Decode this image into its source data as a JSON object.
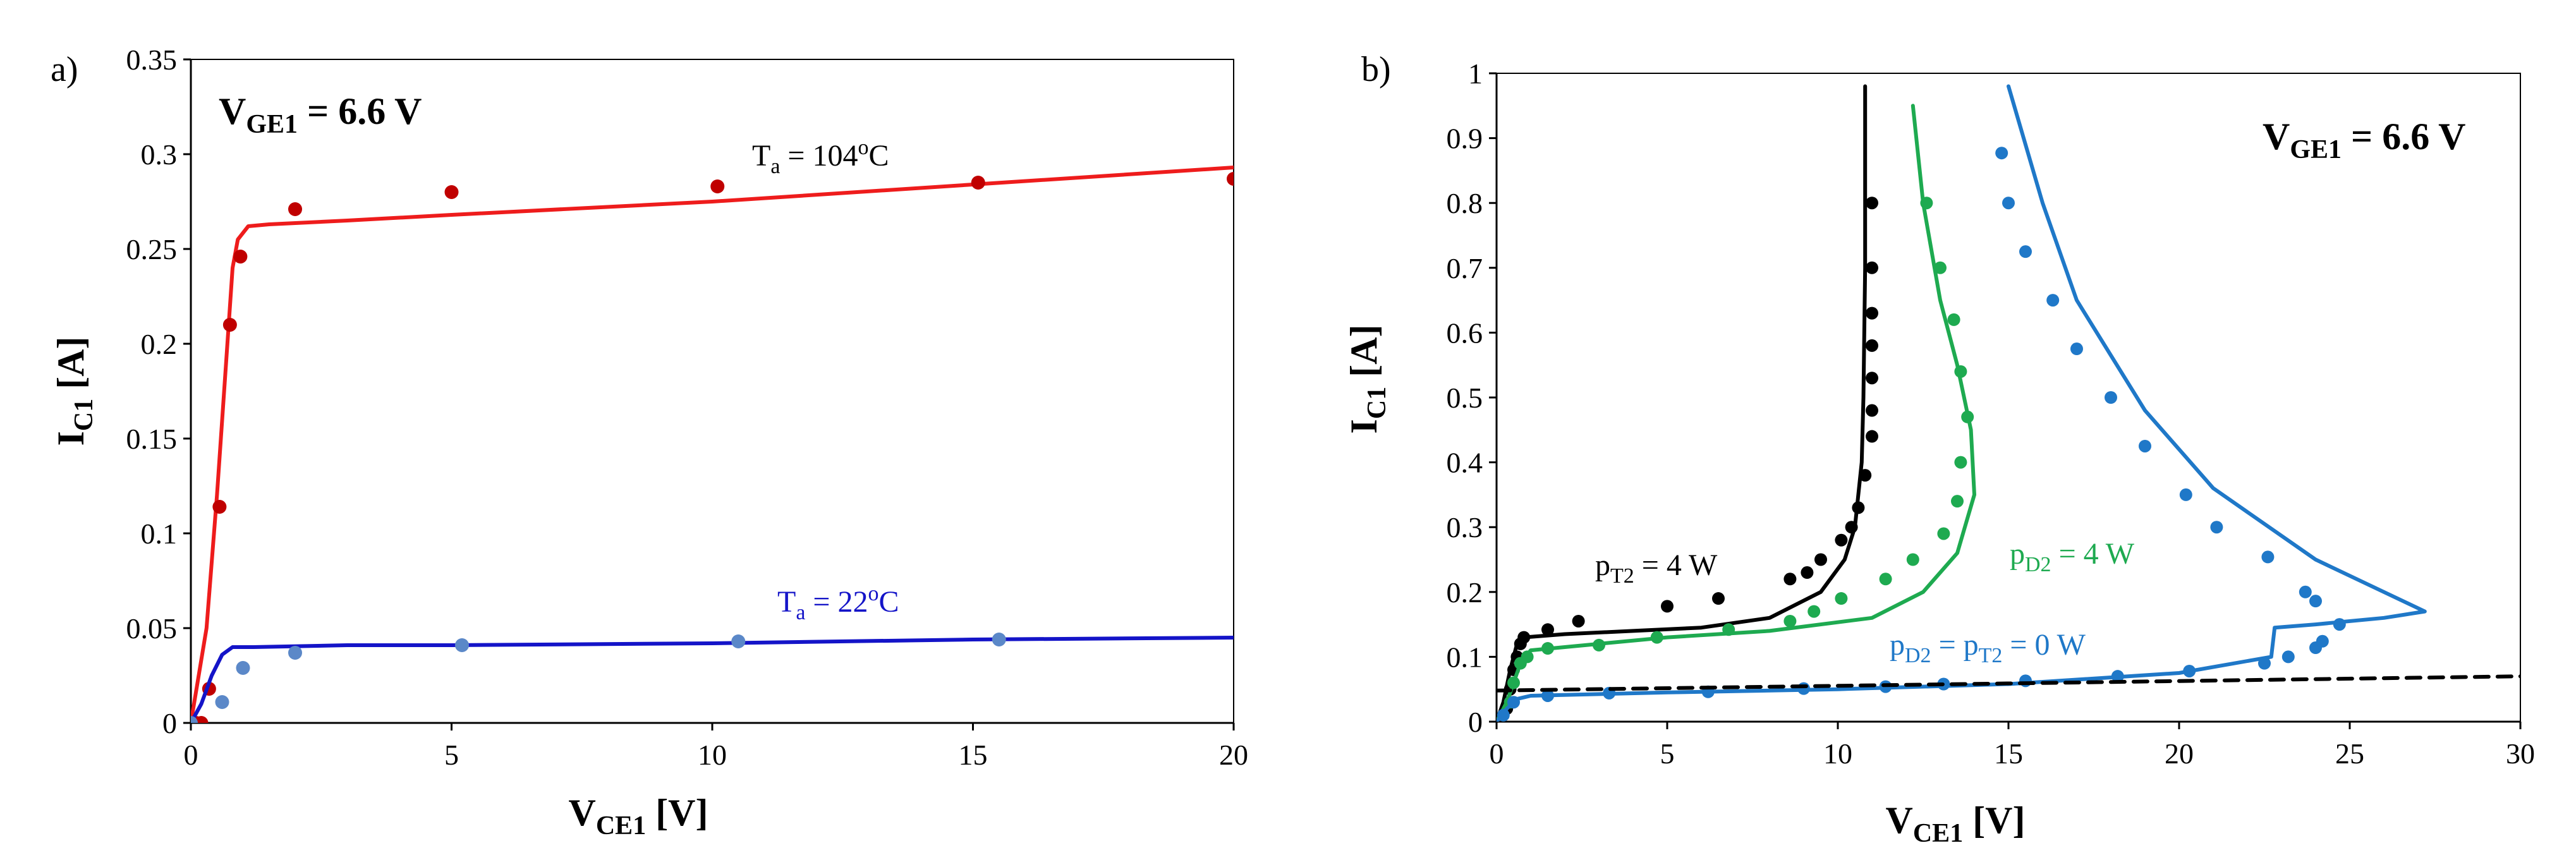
{
  "chart_data": [
    {
      "panel": "a)",
      "type": "line",
      "xlabel": "V",
      "xlabel_sub": "CE1",
      "xlabel_unit": " [V]",
      "ylabel": "I",
      "ylabel_sub": "C1",
      "ylabel_unit": " [A]",
      "xlim": [
        0,
        20
      ],
      "ylim": [
        0,
        0.35
      ],
      "xticks": [
        0,
        5,
        10,
        15,
        20
      ],
      "xtick_labels": [
        "0",
        "5",
        "10",
        "15",
        "20"
      ],
      "yticks": [
        0,
        0.05,
        0.1,
        0.15,
        0.2,
        0.25,
        0.3,
        0.35
      ],
      "ytick_labels": [
        "0",
        "0.05",
        "0.1",
        "0.15",
        "0.2",
        "0.25",
        "0.3",
        "0.35"
      ],
      "vge": {
        "main": "V",
        "sub": "GE1",
        "rest": " = 6.6 V"
      },
      "series": [
        {
          "name": "Ta = 104°C",
          "color": "#ee1c1c",
          "marker_color": "#c00000",
          "curve": [
            [
              0,
              0
            ],
            [
              0.3,
              0.05
            ],
            [
              0.5,
              0.12
            ],
            [
              0.7,
              0.2
            ],
            [
              0.8,
              0.24
            ],
            [
              0.9,
              0.255
            ],
            [
              1.1,
              0.262
            ],
            [
              1.5,
              0.263
            ],
            [
              3,
              0.265
            ],
            [
              5,
              0.268
            ],
            [
              10,
              0.275
            ],
            [
              15,
              0.284
            ],
            [
              20,
              0.293
            ]
          ],
          "points": [
            [
              0,
              0
            ],
            [
              0.1,
              0
            ],
            [
              0.2,
              0
            ],
            [
              0.35,
              0.018
            ],
            [
              0.55,
              0.114
            ],
            [
              0.75,
              0.21
            ],
            [
              0.95,
              0.246
            ],
            [
              2,
              0.271
            ],
            [
              5,
              0.28
            ],
            [
              10.1,
              0.283
            ],
            [
              15.1,
              0.285
            ],
            [
              20,
              0.287
            ]
          ]
        },
        {
          "name": "Ta = 22°C",
          "color": "#1414c8",
          "marker_color": "#5b88c8",
          "curve": [
            [
              0,
              0
            ],
            [
              0.2,
              0.01
            ],
            [
              0.4,
              0.025
            ],
            [
              0.6,
              0.036
            ],
            [
              0.8,
              0.04
            ],
            [
              1.2,
              0.04
            ],
            [
              3,
              0.041
            ],
            [
              5,
              0.041
            ],
            [
              10,
              0.042
            ],
            [
              15,
              0.044
            ],
            [
              20,
              0.045
            ]
          ],
          "points": [
            [
              0,
              0
            ],
            [
              0.6,
              0.011
            ],
            [
              1.0,
              0.029
            ],
            [
              2.0,
              0.037
            ],
            [
              5.2,
              0.041
            ],
            [
              10.5,
              0.043
            ],
            [
              15.5,
              0.044
            ]
          ]
        }
      ],
      "annotations": [
        {
          "main": "T",
          "sub": "a",
          "mid": " = 104",
          "sup": "o",
          "tail": "C",
          "color": "#000000"
        },
        {
          "main": "T",
          "sub": "a",
          "mid": " = 22",
          "sup": "o",
          "tail": "C",
          "color": "#1414c8"
        }
      ]
    },
    {
      "panel": "b)",
      "type": "line",
      "xlabel": "V",
      "xlabel_sub": "CE1",
      "xlabel_unit": " [V]",
      "ylabel": "I",
      "ylabel_sub": "C1",
      "ylabel_unit": " [A]",
      "xlim": [
        0,
        30
      ],
      "ylim": [
        0,
        1
      ],
      "xticks": [
        0,
        5,
        10,
        15,
        20,
        25,
        30
      ],
      "xtick_labels": [
        "0",
        "5",
        "10",
        "15",
        "20",
        "25",
        "30"
      ],
      "yticks": [
        0,
        0.1,
        0.2,
        0.3,
        0.4,
        0.5,
        0.6,
        0.7,
        0.8,
        0.9,
        1
      ],
      "ytick_labels": [
        "0",
        "0.1",
        "0.2",
        "0.3",
        "0.4",
        "0.5",
        "0.6",
        "0.7",
        "0.8",
        "0.9",
        "1"
      ],
      "vge": {
        "main": "V",
        "sub": "GE1",
        "rest": " = 6.6 V"
      },
      "series": [
        {
          "name": "pT2 = 4 W",
          "color": "#000000",
          "marker_color": "#000000",
          "curve": [
            [
              0,
              0
            ],
            [
              0.2,
              0.03
            ],
            [
              0.4,
              0.08
            ],
            [
              0.6,
              0.12
            ],
            [
              0.8,
              0.13
            ],
            [
              2,
              0.135
            ],
            [
              4,
              0.14
            ],
            [
              6,
              0.145
            ],
            [
              8,
              0.16
            ],
            [
              9.5,
              0.2
            ],
            [
              10.2,
              0.25
            ],
            [
              10.5,
              0.3
            ],
            [
              10.7,
              0.4
            ],
            [
              10.75,
              0.5
            ],
            [
              10.8,
              0.7
            ],
            [
              10.8,
              0.98
            ]
          ],
          "points": [
            [
              0.3,
              0.02
            ],
            [
              0.4,
              0.05
            ],
            [
              0.5,
              0.08
            ],
            [
              0.6,
              0.1
            ],
            [
              0.7,
              0.12
            ],
            [
              0.8,
              0.13
            ],
            [
              1.5,
              0.142
            ],
            [
              2.4,
              0.155
            ],
            [
              5,
              0.178
            ],
            [
              6.5,
              0.19
            ],
            [
              8.6,
              0.22
            ],
            [
              9.1,
              0.23
            ],
            [
              9.5,
              0.25
            ],
            [
              10.1,
              0.28
            ],
            [
              10.4,
              0.3
            ],
            [
              10.6,
              0.33
            ],
            [
              10.8,
              0.38
            ],
            [
              11.0,
              0.44
            ],
            [
              11.0,
              0.48
            ],
            [
              11.0,
              0.53
            ],
            [
              11.0,
              0.58
            ],
            [
              11.0,
              0.63
            ],
            [
              11.0,
              0.7
            ],
            [
              11.0,
              0.8
            ]
          ]
        },
        {
          "name": "pD2 = 4 W",
          "color": "#1eaa50",
          "marker_color": "#1eaa50",
          "curve": [
            [
              0,
              0
            ],
            [
              0.3,
              0.03
            ],
            [
              0.5,
              0.06
            ],
            [
              0.7,
              0.09
            ],
            [
              1,
              0.11
            ],
            [
              2,
              0.115
            ],
            [
              5,
              0.13
            ],
            [
              8,
              0.14
            ],
            [
              11,
              0.16
            ],
            [
              12.5,
              0.2
            ],
            [
              13.5,
              0.26
            ],
            [
              14.0,
              0.35
            ],
            [
              13.9,
              0.45
            ],
            [
              13.5,
              0.55
            ],
            [
              13,
              0.65
            ],
            [
              12.5,
              0.8
            ],
            [
              12.2,
              0.95
            ]
          ],
          "points": [
            [
              0.4,
              0.03
            ],
            [
              0.5,
              0.06
            ],
            [
              0.7,
              0.09
            ],
            [
              0.9,
              0.1
            ],
            [
              1.5,
              0.113
            ],
            [
              3,
              0.118
            ],
            [
              4.7,
              0.13
            ],
            [
              6.8,
              0.142
            ],
            [
              8.6,
              0.155
            ],
            [
              9.3,
              0.17
            ],
            [
              10.1,
              0.19
            ],
            [
              11.4,
              0.22
            ],
            [
              12.2,
              0.25
            ],
            [
              13.1,
              0.29
            ],
            [
              13.5,
              0.34
            ],
            [
              13.6,
              0.4
            ],
            [
              13.8,
              0.47
            ],
            [
              13.6,
              0.54
            ],
            [
              13.4,
              0.62
            ],
            [
              13.0,
              0.7
            ],
            [
              12.6,
              0.8
            ]
          ]
        },
        {
          "name": "pD2 = pT2 = 0 W",
          "color": "#1f78c8",
          "marker_color": "#1f78c8",
          "curve": [
            [
              0,
              0
            ],
            [
              0.3,
              0.02
            ],
            [
              0.6,
              0.035
            ],
            [
              1,
              0.04
            ],
            [
              5,
              0.045
            ],
            [
              10,
              0.05
            ],
            [
              15,
              0.058
            ],
            [
              20,
              0.075
            ],
            [
              22.7,
              0.1
            ],
            [
              22.8,
              0.145
            ],
            [
              24,
              0.15
            ],
            [
              26,
              0.16
            ],
            [
              27.2,
              0.17
            ],
            [
              26,
              0.2
            ],
            [
              24,
              0.25
            ],
            [
              21,
              0.36
            ],
            [
              19,
              0.48
            ],
            [
              17,
              0.65
            ],
            [
              16,
              0.8
            ],
            [
              15,
              0.98
            ]
          ],
          "points": [
            [
              0.2,
              0.01
            ],
            [
              0.5,
              0.03
            ],
            [
              1.5,
              0.04
            ],
            [
              3.3,
              0.044
            ],
            [
              6.2,
              0.046
            ],
            [
              9,
              0.051
            ],
            [
              11.4,
              0.054
            ],
            [
              13.1,
              0.058
            ],
            [
              15.5,
              0.063
            ],
            [
              18.2,
              0.07
            ],
            [
              20.3,
              0.078
            ],
            [
              22.5,
              0.09
            ],
            [
              23.2,
              0.1
            ],
            [
              24,
              0.114
            ],
            [
              24.2,
              0.124
            ],
            [
              24.7,
              0.15
            ],
            [
              24,
              0.186
            ],
            [
              23.7,
              0.2
            ],
            [
              22.6,
              0.254
            ],
            [
              21.1,
              0.3
            ],
            [
              20.2,
              0.35
            ],
            [
              19,
              0.425
            ],
            [
              18,
              0.5
            ],
            [
              17,
              0.575
            ],
            [
              16.3,
              0.65
            ],
            [
              15.5,
              0.725
            ],
            [
              15.0,
              0.8
            ],
            [
              14.8,
              0.877
            ]
          ]
        },
        {
          "name": "dashed reference",
          "color": "#000000",
          "dashed": true,
          "curve": [
            [
              0,
              0.048
            ],
            [
              30,
              0.07
            ]
          ]
        }
      ],
      "annotations": [
        {
          "main": "p",
          "sub": "T2",
          "tail": " = 4 W",
          "color": "#000000"
        },
        {
          "main": "p",
          "sub": "D2",
          "tail": " = 4 W",
          "color": "#1eaa50"
        },
        {
          "main": "p",
          "sub": "D2",
          "mid": " = p",
          "sub2": "T2",
          "tail": " = 0 W",
          "color": "#1f78c8"
        }
      ]
    }
  ]
}
